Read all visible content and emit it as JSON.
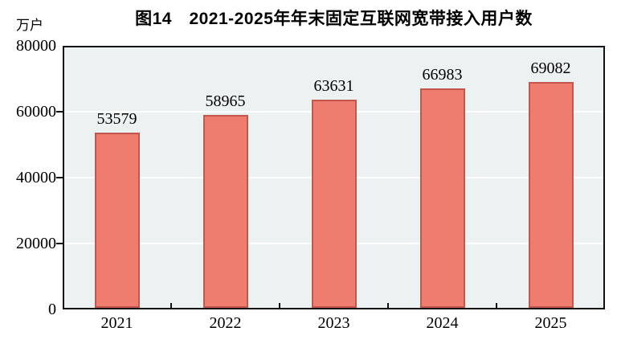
{
  "chart_data": {
    "type": "bar",
    "title": "图14　2021-2025年年末固定互联网宽带接入用户数",
    "unit_label": "万户",
    "categories": [
      "2021",
      "2022",
      "2023",
      "2024",
      "2025"
    ],
    "values": [
      53579,
      58965,
      63631,
      66983,
      69082
    ],
    "ylim": [
      0,
      80000
    ],
    "yticks": [
      0,
      20000,
      40000,
      60000,
      80000
    ],
    "grid": "horizontal-white-lines",
    "legend": "none",
    "colors": {
      "bar_fill": "#ee7d6f",
      "bar_border": "#c2574e",
      "plot_background": "#ecf1f2",
      "gridline": "#ffffff",
      "axis_frame": "#111111",
      "text": "#000000"
    }
  }
}
